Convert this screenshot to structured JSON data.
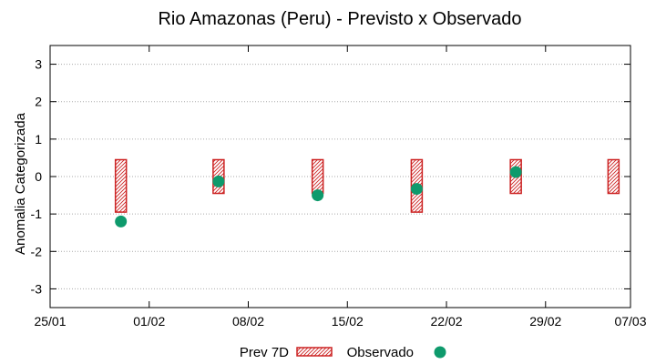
{
  "chart_data": {
    "type": "bar",
    "title": "Rio Amazonas (Peru) - Previsto x Observado",
    "ylabel": "Anomalia Categorizada",
    "xlabel": "",
    "ylim": [
      -3.5,
      3.5
    ],
    "yticks": [
      3,
      2,
      1,
      0,
      -1,
      -2,
      -3
    ],
    "xlim_days": [
      0,
      41
    ],
    "xticks": [
      {
        "label": "25/01",
        "day": 0
      },
      {
        "label": "01/02",
        "day": 7
      },
      {
        "label": "08/02",
        "day": 14
      },
      {
        "label": "15/02",
        "day": 21
      },
      {
        "label": "22/02",
        "day": 28
      },
      {
        "label": "29/02",
        "day": 35
      },
      {
        "label": "07/03",
        "day": 41
      }
    ],
    "grid": true,
    "legend_position": "bottom-center",
    "series": [
      {
        "name": "Prev 7D",
        "kind": "range-box",
        "color": "#cc2222",
        "points": [
          {
            "day": 5.0,
            "low": -0.95,
            "high": 0.45
          },
          {
            "day": 11.9,
            "low": -0.45,
            "high": 0.45
          },
          {
            "day": 18.9,
            "low": -0.45,
            "high": 0.45
          },
          {
            "day": 25.9,
            "low": -0.95,
            "high": 0.45
          },
          {
            "day": 32.9,
            "low": -0.45,
            "high": 0.45
          },
          {
            "day": 39.8,
            "low": -0.45,
            "high": 0.45
          }
        ]
      },
      {
        "name": "Observado",
        "kind": "point",
        "color": "#0e9a6c",
        "points": [
          {
            "day": 5.0,
            "value": -1.2
          },
          {
            "day": 11.9,
            "value": -0.13
          },
          {
            "day": 18.9,
            "value": -0.5
          },
          {
            "day": 25.9,
            "value": -0.33
          },
          {
            "day": 32.9,
            "value": 0.12
          }
        ]
      }
    ]
  }
}
